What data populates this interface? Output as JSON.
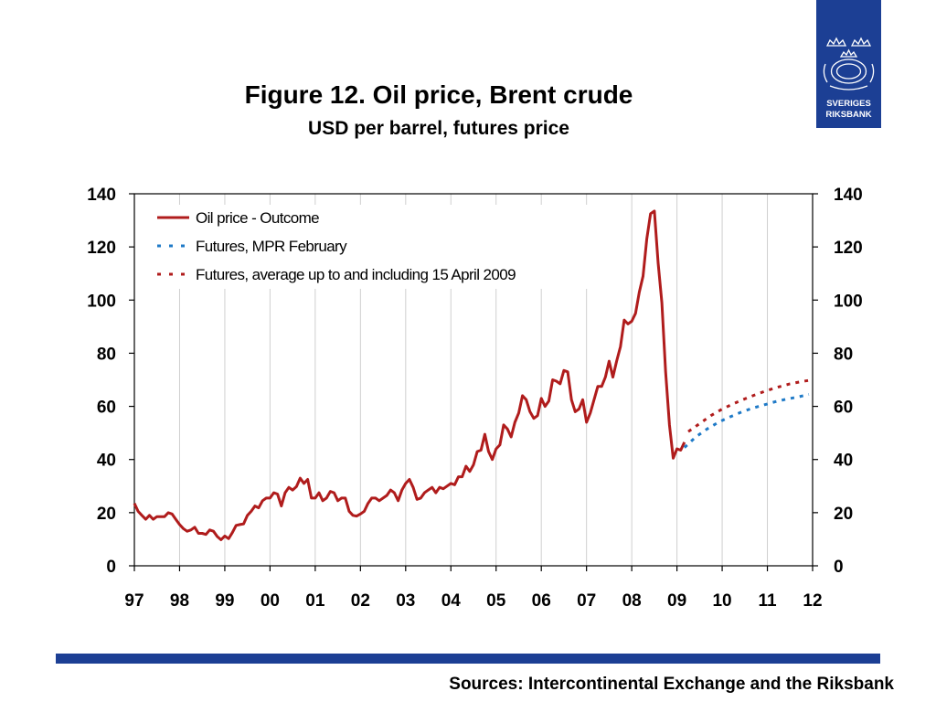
{
  "logo": {
    "name": "Sveriges Riksbank",
    "line1": "SVERIGES",
    "line2": "RIKSBANK"
  },
  "colors": {
    "brand": "#1c3f94",
    "outcome": "#b01c1c",
    "mpr_futures": "#1f7ac7",
    "avg_futures": "#b01c1c",
    "grid": "#cfcfcf"
  },
  "footer": {
    "source": "Sources: Intercontinental Exchange and the Riksbank"
  },
  "chart_data": {
    "type": "line",
    "title": "Figure 12. Oil price, Brent crude",
    "subtitle": "USD per barrel, futures price",
    "xlabel": "",
    "ylabel": "",
    "x_tick_labels": [
      "97",
      "98",
      "99",
      "00",
      "01",
      "02",
      "03",
      "04",
      "05",
      "06",
      "07",
      "08",
      "09",
      "10",
      "11",
      "12"
    ],
    "ylim": [
      0,
      140
    ],
    "y_ticks": [
      0,
      20,
      40,
      60,
      80,
      100,
      120,
      140
    ],
    "y_axis_both_sides": true,
    "grid": "vertical",
    "legend_position": "top-left",
    "series": [
      {
        "name": "Oil price - Outcome",
        "style": "solid",
        "points": [
          [
            "1997-01",
            23.5
          ],
          [
            "1997-02",
            20.5
          ],
          [
            "1997-03",
            19
          ],
          [
            "1997-04",
            17.5
          ],
          [
            "1997-05",
            19
          ],
          [
            "1997-06",
            17.5
          ],
          [
            "1997-07",
            18.5
          ],
          [
            "1997-08",
            18.5
          ],
          [
            "1997-09",
            18.5
          ],
          [
            "1997-10",
            20
          ],
          [
            "1997-11",
            19.5
          ],
          [
            "1997-12",
            17.5
          ],
          [
            "1998-01",
            15.5
          ],
          [
            "1998-02",
            14
          ],
          [
            "1998-03",
            13
          ],
          [
            "1998-04",
            13.5
          ],
          [
            "1998-05",
            14.5
          ],
          [
            "1998-06",
            12.2
          ],
          [
            "1998-07",
            12.2
          ],
          [
            "1998-08",
            11.8
          ],
          [
            "1998-09",
            13.5
          ],
          [
            "1998-10",
            13
          ],
          [
            "1998-11",
            11
          ],
          [
            "1998-12",
            9.8
          ],
          [
            "1999-01",
            11.2
          ],
          [
            "1999-02",
            10.2
          ],
          [
            "1999-03",
            12.5
          ],
          [
            "1999-04",
            15.2
          ],
          [
            "1999-05",
            15.5
          ],
          [
            "1999-06",
            15.8
          ],
          [
            "1999-07",
            19
          ],
          [
            "1999-08",
            20.5
          ],
          [
            "1999-09",
            22.5
          ],
          [
            "1999-10",
            21.8
          ],
          [
            "1999-11",
            24.5
          ],
          [
            "1999-12",
            25.5
          ],
          [
            "2000-01",
            25.5
          ],
          [
            "2000-02",
            27.5
          ],
          [
            "2000-03",
            27
          ],
          [
            "2000-04",
            22.5
          ],
          [
            "2000-05",
            27.5
          ],
          [
            "2000-06",
            29.5
          ],
          [
            "2000-07",
            28.5
          ],
          [
            "2000-08",
            29.8
          ],
          [
            "2000-09",
            33
          ],
          [
            "2000-10",
            31
          ],
          [
            "2000-11",
            32.5
          ],
          [
            "2000-12",
            25.5
          ],
          [
            "2001-01",
            25.5
          ],
          [
            "2001-02",
            27.5
          ],
          [
            "2001-03",
            24.5
          ],
          [
            "2001-04",
            25.5
          ],
          [
            "2001-05",
            28
          ],
          [
            "2001-06",
            27.5
          ],
          [
            "2001-07",
            24.5
          ],
          [
            "2001-08",
            25.5
          ],
          [
            "2001-09",
            25.5
          ],
          [
            "2001-10",
            20.5
          ],
          [
            "2001-11",
            19
          ],
          [
            "2001-12",
            18.7
          ],
          [
            "2002-01",
            19.5
          ],
          [
            "2002-02",
            20.5
          ],
          [
            "2002-03",
            23.5
          ],
          [
            "2002-04",
            25.5
          ],
          [
            "2002-05",
            25.5
          ],
          [
            "2002-06",
            24.5
          ],
          [
            "2002-07",
            25.5
          ],
          [
            "2002-08",
            26.5
          ],
          [
            "2002-09",
            28.5
          ],
          [
            "2002-10",
            27.5
          ],
          [
            "2002-11",
            24.5
          ],
          [
            "2002-12",
            28.5
          ],
          [
            "2003-01",
            31
          ],
          [
            "2003-02",
            32.5
          ],
          [
            "2003-03",
            29.5
          ],
          [
            "2003-04",
            25
          ],
          [
            "2003-05",
            25.5
          ],
          [
            "2003-06",
            27.5
          ],
          [
            "2003-07",
            28.5
          ],
          [
            "2003-08",
            29.5
          ],
          [
            "2003-09",
            27.5
          ],
          [
            "2003-10",
            29.5
          ],
          [
            "2003-11",
            29
          ],
          [
            "2003-12",
            30
          ],
          [
            "2004-01",
            31
          ],
          [
            "2004-02",
            30.5
          ],
          [
            "2004-03",
            33.5
          ],
          [
            "2004-04",
            33.5
          ],
          [
            "2004-05",
            37.5
          ],
          [
            "2004-06",
            35.5
          ],
          [
            "2004-07",
            38
          ],
          [
            "2004-08",
            43
          ],
          [
            "2004-09",
            43.5
          ],
          [
            "2004-10",
            49.5
          ],
          [
            "2004-11",
            43
          ],
          [
            "2004-12",
            40
          ],
          [
            "2005-01",
            44
          ],
          [
            "2005-02",
            45.5
          ],
          [
            "2005-03",
            53
          ],
          [
            "2005-04",
            51.5
          ],
          [
            "2005-05",
            48.5
          ],
          [
            "2005-06",
            54
          ],
          [
            "2005-07",
            57.5
          ],
          [
            "2005-08",
            64
          ],
          [
            "2005-09",
            62.5
          ],
          [
            "2005-10",
            58
          ],
          [
            "2005-11",
            55.5
          ],
          [
            "2005-12",
            56.5
          ],
          [
            "2006-01",
            63
          ],
          [
            "2006-02",
            60
          ],
          [
            "2006-03",
            62
          ],
          [
            "2006-04",
            70
          ],
          [
            "2006-05",
            69.5
          ],
          [
            "2006-06",
            68.5
          ],
          [
            "2006-07",
            73.5
          ],
          [
            "2006-08",
            73
          ],
          [
            "2006-09",
            62.5
          ],
          [
            "2006-10",
            58
          ],
          [
            "2006-11",
            59
          ],
          [
            "2006-12",
            62.5
          ],
          [
            "2007-01",
            54
          ],
          [
            "2007-02",
            57.5
          ],
          [
            "2007-03",
            62.5
          ],
          [
            "2007-04",
            67.5
          ],
          [
            "2007-05",
            67.5
          ],
          [
            "2007-06",
            71
          ],
          [
            "2007-07",
            77
          ],
          [
            "2007-08",
            71
          ],
          [
            "2007-09",
            77
          ],
          [
            "2007-10",
            82.5
          ],
          [
            "2007-11",
            92.5
          ],
          [
            "2007-12",
            91
          ],
          [
            "2008-01",
            92
          ],
          [
            "2008-02",
            95
          ],
          [
            "2008-03",
            103
          ],
          [
            "2008-04",
            109
          ],
          [
            "2008-05",
            123
          ],
          [
            "2008-06",
            132.5
          ],
          [
            "2008-07",
            133.5
          ],
          [
            "2008-08",
            114
          ],
          [
            "2008-09",
            99
          ],
          [
            "2008-10",
            73
          ],
          [
            "2008-11",
            53
          ],
          [
            "2008-12",
            40.5
          ],
          [
            "2009-01",
            44
          ],
          [
            "2009-02",
            43.5
          ],
          [
            "2009-03",
            46.5
          ]
        ]
      },
      {
        "name": "Futures, MPR February",
        "style": "dashed",
        "points": [
          [
            "2009-03",
            44.5
          ],
          [
            "2009-06",
            48.5
          ],
          [
            "2009-09",
            51.5
          ],
          [
            "2009-12",
            54
          ],
          [
            "2010-03",
            56
          ],
          [
            "2010-06",
            57.8
          ],
          [
            "2010-09",
            59.3
          ],
          [
            "2010-12",
            60.5
          ],
          [
            "2011-03",
            61.7
          ],
          [
            "2011-06",
            62.7
          ],
          [
            "2011-09",
            63.5
          ],
          [
            "2011-12",
            64.5
          ]
        ]
      },
      {
        "name": "Futures, average up to and including 15 April 2009",
        "style": "dashed",
        "points": [
          [
            "2009-04",
            50.5
          ],
          [
            "2009-07",
            53.5
          ],
          [
            "2009-10",
            56.5
          ],
          [
            "2010-01",
            59
          ],
          [
            "2010-04",
            61
          ],
          [
            "2010-07",
            62.8
          ],
          [
            "2010-10",
            64.5
          ],
          [
            "2011-01",
            66
          ],
          [
            "2011-04",
            67.3
          ],
          [
            "2011-07",
            68.5
          ],
          [
            "2011-10",
            69.3
          ],
          [
            "2012-01",
            70
          ]
        ]
      }
    ]
  }
}
